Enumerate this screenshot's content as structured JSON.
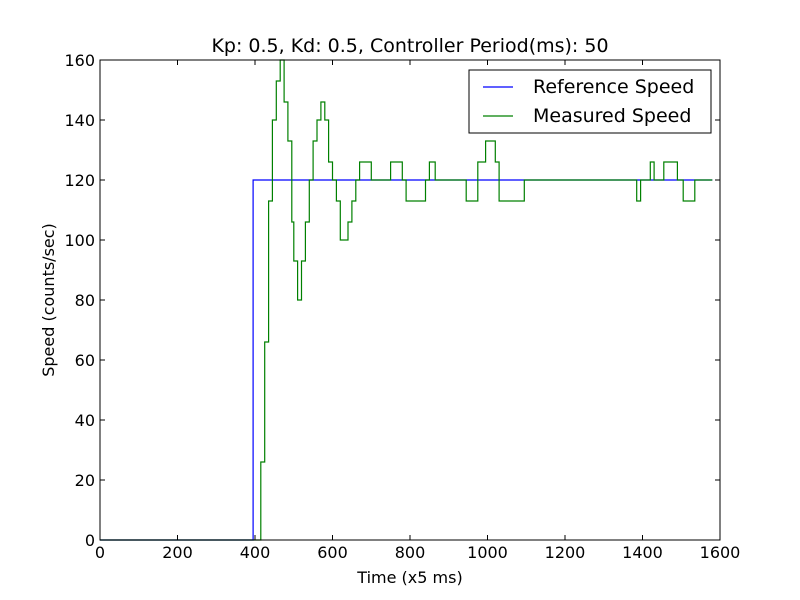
{
  "chart_data": {
    "type": "line",
    "title": "Kp: 0.5, Kd: 0.5, Controller Period(ms): 50",
    "xlabel": "Time (x5 ms)",
    "ylabel": "Speed (counts/sec)",
    "xlim": [
      0,
      1600
    ],
    "ylim": [
      0,
      160
    ],
    "xticks": [
      0,
      200,
      400,
      600,
      800,
      1000,
      1200,
      1400,
      1600
    ],
    "yticks": [
      0,
      20,
      40,
      60,
      80,
      100,
      120,
      140,
      160
    ],
    "grid": false,
    "legend_position": "top-right",
    "series": [
      {
        "name": "Reference Speed",
        "color": "#0000ff",
        "step": true,
        "points": [
          [
            0,
            0
          ],
          [
            395,
            0
          ],
          [
            395,
            120
          ],
          [
            1580,
            120
          ]
        ]
      },
      {
        "name": "Measured Speed",
        "color": "#008000",
        "step": true,
        "points": [
          [
            0,
            0
          ],
          [
            415,
            0
          ],
          [
            415,
            26
          ],
          [
            425,
            26
          ],
          [
            425,
            66
          ],
          [
            435,
            66
          ],
          [
            435,
            113
          ],
          [
            445,
            113
          ],
          [
            445,
            140
          ],
          [
            455,
            140
          ],
          [
            455,
            153
          ],
          [
            465,
            153
          ],
          [
            465,
            160
          ],
          [
            475,
            160
          ],
          [
            475,
            146
          ],
          [
            485,
            146
          ],
          [
            485,
            133
          ],
          [
            495,
            133
          ],
          [
            495,
            106
          ],
          [
            500,
            106
          ],
          [
            500,
            93
          ],
          [
            510,
            93
          ],
          [
            510,
            80
          ],
          [
            520,
            80
          ],
          [
            520,
            93
          ],
          [
            530,
            93
          ],
          [
            530,
            106
          ],
          [
            540,
            106
          ],
          [
            540,
            120
          ],
          [
            550,
            120
          ],
          [
            550,
            133
          ],
          [
            560,
            133
          ],
          [
            560,
            140
          ],
          [
            570,
            140
          ],
          [
            570,
            146
          ],
          [
            580,
            146
          ],
          [
            580,
            140
          ],
          [
            590,
            140
          ],
          [
            590,
            126
          ],
          [
            600,
            126
          ],
          [
            600,
            120
          ],
          [
            610,
            120
          ],
          [
            610,
            113
          ],
          [
            620,
            113
          ],
          [
            620,
            100
          ],
          [
            640,
            100
          ],
          [
            640,
            106
          ],
          [
            650,
            106
          ],
          [
            650,
            113
          ],
          [
            660,
            113
          ],
          [
            660,
            120
          ],
          [
            670,
            120
          ],
          [
            670,
            126
          ],
          [
            700,
            126
          ],
          [
            700,
            120
          ],
          [
            750,
            120
          ],
          [
            750,
            126
          ],
          [
            780,
            126
          ],
          [
            780,
            120
          ],
          [
            790,
            120
          ],
          [
            790,
            113
          ],
          [
            840,
            113
          ],
          [
            840,
            120
          ],
          [
            850,
            120
          ],
          [
            850,
            126
          ],
          [
            865,
            126
          ],
          [
            865,
            120
          ],
          [
            945,
            120
          ],
          [
            945,
            113
          ],
          [
            975,
            113
          ],
          [
            975,
            126
          ],
          [
            995,
            126
          ],
          [
            995,
            133
          ],
          [
            1020,
            133
          ],
          [
            1020,
            126
          ],
          [
            1030,
            126
          ],
          [
            1030,
            113
          ],
          [
            1095,
            113
          ],
          [
            1095,
            120
          ],
          [
            1385,
            120
          ],
          [
            1385,
            113
          ],
          [
            1395,
            113
          ],
          [
            1395,
            120
          ],
          [
            1420,
            120
          ],
          [
            1420,
            126
          ],
          [
            1430,
            126
          ],
          [
            1430,
            120
          ],
          [
            1455,
            120
          ],
          [
            1455,
            126
          ],
          [
            1490,
            126
          ],
          [
            1490,
            120
          ],
          [
            1505,
            120
          ],
          [
            1505,
            113
          ],
          [
            1535,
            113
          ],
          [
            1535,
            120
          ],
          [
            1580,
            120
          ]
        ]
      }
    ]
  }
}
